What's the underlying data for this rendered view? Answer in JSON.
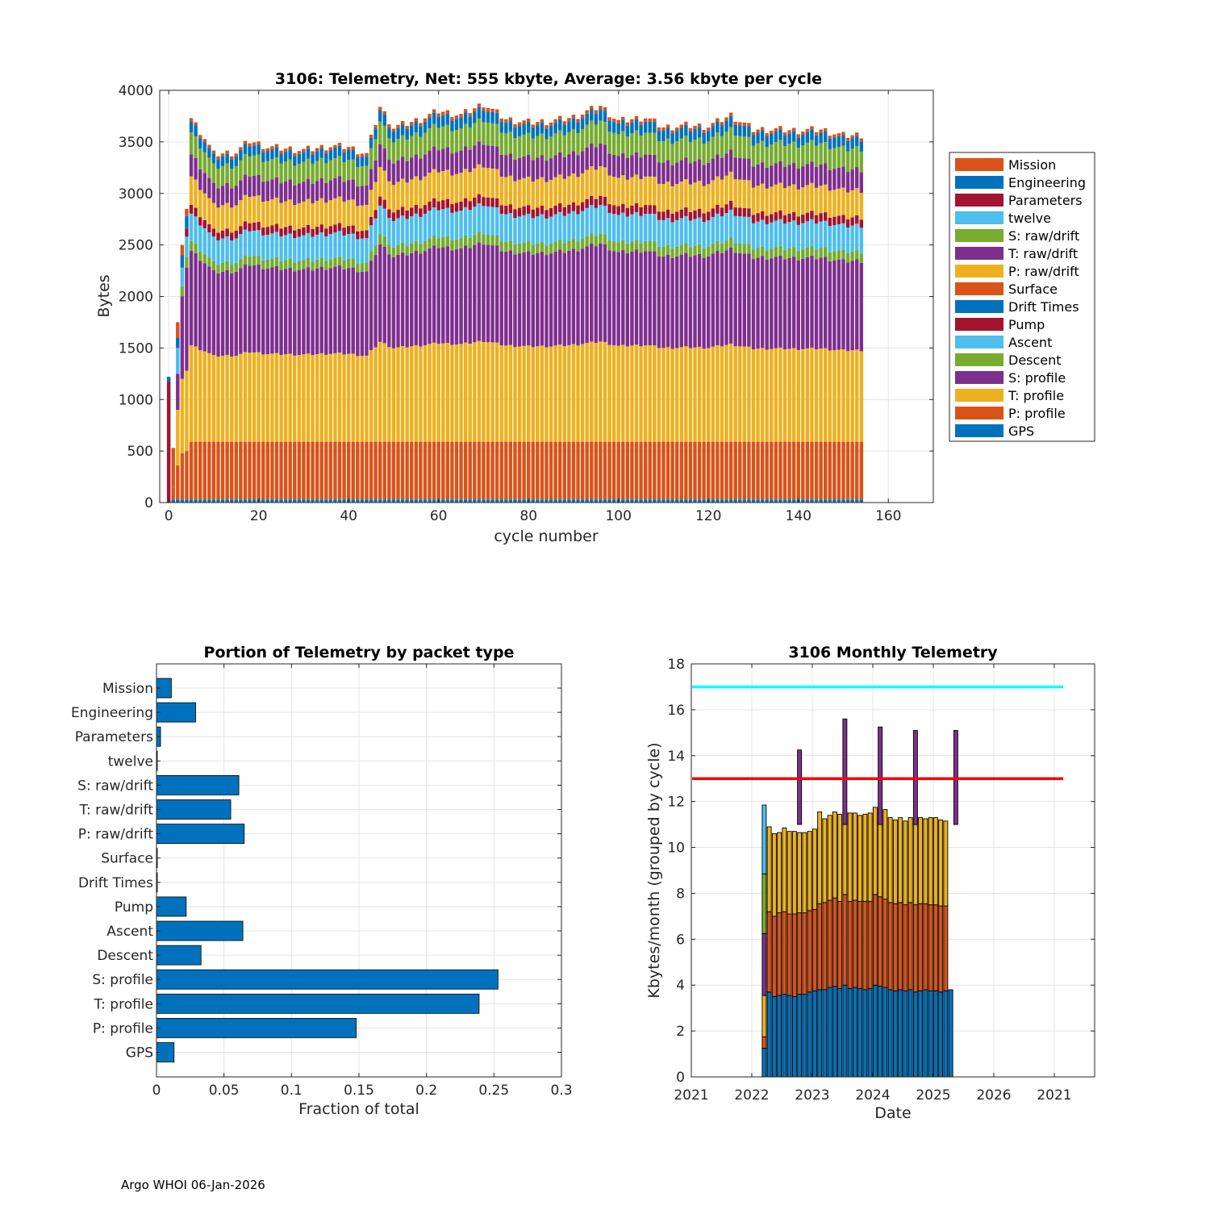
{
  "footer": "Argo WHOI 06-Jan-2026",
  "colors": {
    "blue": "#0072BD",
    "orange": "#D95319",
    "yellow": "#EDB120",
    "purple": "#7E2F8E",
    "green": "#77AC30",
    "cyan": "#4DBEEE",
    "red": "#A2142F",
    "limit_high": "#00FFFF",
    "limit_low": "#FF0000",
    "grid": "#e4e4e4"
  },
  "chart_data": [
    {
      "type": "bar",
      "stacked": true,
      "title": "3106: Telemetry, Net:    555 kbyte,  Average: 3.56 kbyte per cycle",
      "xlabel": "cycle number",
      "ylabel": "Bytes",
      "xlim": [
        -2,
        170
      ],
      "ylim": [
        0,
        4000
      ],
      "xticks": [
        0,
        20,
        40,
        60,
        80,
        100,
        120,
        140,
        160
      ],
      "yticks": [
        0,
        500,
        1000,
        1500,
        2000,
        2500,
        3000,
        3500,
        4000
      ],
      "legend": [
        "Mission",
        "Engineering",
        "Parameters",
        "twelve",
        "S: raw/drift",
        "T: raw/drift",
        "P: raw/drift",
        "Surface",
        "Drift Times",
        "Pump",
        "Ascent",
        "Descent",
        "S: profile",
        "T: profile",
        "P: profile",
        "GPS"
      ],
      "legend_location": "right",
      "stack_order": [
        "GPS",
        "P: profile",
        "T: profile",
        "S: profile",
        "Descent",
        "Ascent",
        "Pump",
        "P: raw/drift",
        "T: raw/drift",
        "S: raw/drift",
        "Engineering",
        "Mission"
      ],
      "segment_colors": [
        "#0072BD",
        "#D95319",
        "#EDB120",
        "#7E2F8E",
        "#77AC30",
        "#4DBEEE",
        "#A2142F",
        "#EDB120",
        "#7E2F8E",
        "#77AC30",
        "#0072BD",
        "#D95319"
      ],
      "cycle_first": 5,
      "cycle_last": 154,
      "segment_base_values": {
        "GPS": 30,
        "P: profile": 560,
        "T: profile": 880,
        "S: profile": 860,
        "Descent": 90,
        "Ascent": 250,
        "Pump": 80,
        "P: raw/drift": 260,
        "T: raw/drift": 200,
        "S: raw/drift": 200,
        "Engineering": 100,
        "Mission": 30
      },
      "early_cycles": [
        {
          "cycle": 0,
          "segments": [
            {
              "name": "Parameters",
              "value": 1170,
              "color": "#A2142F"
            },
            {
              "name": "Engineering",
              "value": 50,
              "color": "#0072BD"
            }
          ]
        },
        {
          "cycle": 1,
          "segments": [
            {
              "name": "GPS",
              "value": 30,
              "color": "#0072BD"
            },
            {
              "name": "P: profile",
              "value": 120,
              "color": "#D95319"
            },
            {
              "name": "Mission",
              "value": 380,
              "color": "#D95319"
            }
          ]
        },
        {
          "cycle": 2,
          "segments": [
            {
              "name": "GPS",
              "value": 30,
              "color": "#0072BD"
            },
            {
              "name": "P: profile",
              "value": 330,
              "color": "#D95319"
            },
            {
              "name": "T: profile",
              "value": 540,
              "color": "#EDB120"
            },
            {
              "name": "S: profile",
              "value": 350,
              "color": "#7E2F8E"
            },
            {
              "name": "Ascent",
              "value": 250,
              "color": "#4DBEEE"
            },
            {
              "name": "Engineering",
              "value": 100,
              "color": "#0072BD"
            },
            {
              "name": "Mission",
              "value": 150,
              "color": "#D95319"
            }
          ]
        },
        {
          "cycle": 3,
          "segments": [
            {
              "name": "GPS",
              "value": 30,
              "color": "#0072BD"
            },
            {
              "name": "P: profile",
              "value": 450,
              "color": "#D95319"
            },
            {
              "name": "T: profile",
              "value": 720,
              "color": "#EDB120"
            },
            {
              "name": "S: profile",
              "value": 800,
              "color": "#7E2F8E"
            },
            {
              "name": "Descent",
              "value": 100,
              "color": "#77AC30"
            },
            {
              "name": "Ascent",
              "value": 180,
              "color": "#4DBEEE"
            },
            {
              "name": "Engineering",
              "value": 120,
              "color": "#0072BD"
            },
            {
              "name": "Mission",
              "value": 100,
              "color": "#D95319"
            }
          ]
        },
        {
          "cycle": 4,
          "segments": [
            {
              "name": "GPS",
              "value": 30,
              "color": "#0072BD"
            },
            {
              "name": "P: profile",
              "value": 470,
              "color": "#D95319"
            },
            {
              "name": "T: profile",
              "value": 780,
              "color": "#EDB120"
            },
            {
              "name": "S: profile",
              "value": 1000,
              "color": "#7E2F8E"
            },
            {
              "name": "Descent",
              "value": 100,
              "color": "#77AC30"
            },
            {
              "name": "Ascent",
              "value": 200,
              "color": "#4DBEEE"
            },
            {
              "name": "Pump",
              "value": 80,
              "color": "#A2142F"
            },
            {
              "name": "Engineering",
              "value": 120,
              "color": "#0072BD"
            },
            {
              "name": "Mission",
              "value": 70,
              "color": "#D95319"
            }
          ]
        }
      ],
      "sampled_totals": [
        {
          "cycle": 5,
          "total": 3730
        },
        {
          "cycle": 8,
          "total": 3540
        },
        {
          "cycle": 10,
          "total": 3380
        },
        {
          "cycle": 15,
          "total": 3400
        },
        {
          "cycle": 18,
          "total": 3510
        },
        {
          "cycle": 22,
          "total": 3450
        },
        {
          "cycle": 30,
          "total": 3420
        },
        {
          "cycle": 36,
          "total": 3460
        },
        {
          "cycle": 40,
          "total": 3450
        },
        {
          "cycle": 44,
          "total": 3380
        },
        {
          "cycle": 47,
          "total": 3840
        },
        {
          "cycle": 50,
          "total": 3640
        },
        {
          "cycle": 56,
          "total": 3720
        },
        {
          "cycle": 60,
          "total": 3800
        },
        {
          "cycle": 65,
          "total": 3760
        },
        {
          "cycle": 70,
          "total": 3870
        },
        {
          "cycle": 75,
          "total": 3720
        },
        {
          "cycle": 80,
          "total": 3690
        },
        {
          "cycle": 85,
          "total": 3700
        },
        {
          "cycle": 90,
          "total": 3740
        },
        {
          "cycle": 96,
          "total": 3850
        },
        {
          "cycle": 100,
          "total": 3700
        },
        {
          "cycle": 106,
          "total": 3740
        },
        {
          "cycle": 110,
          "total": 3640
        },
        {
          "cycle": 115,
          "total": 3660
        },
        {
          "cycle": 120,
          "total": 3650
        },
        {
          "cycle": 125,
          "total": 3760
        },
        {
          "cycle": 130,
          "total": 3620
        },
        {
          "cycle": 135,
          "total": 3620
        },
        {
          "cycle": 140,
          "total": 3610
        },
        {
          "cycle": 145,
          "total": 3620
        },
        {
          "cycle": 150,
          "total": 3560
        },
        {
          "cycle": 154,
          "total": 3570
        }
      ]
    },
    {
      "type": "bar",
      "orientation": "horizontal",
      "title": "Portion of Telemetry by packet type",
      "xlabel": "Fraction of total",
      "ylabel": "",
      "xlim": [
        0,
        0.3
      ],
      "xticks": [
        0,
        0.05,
        0.1,
        0.15,
        0.2,
        0.25,
        0.3
      ],
      "xtick_labels": [
        "0",
        "0.05",
        "0.1",
        "0.15",
        "0.2",
        "0.25",
        "0.3"
      ],
      "categories": [
        "Mission",
        "Engineering",
        "Parameters",
        "twelve",
        "S: raw/drift",
        "T: raw/drift",
        "P: raw/drift",
        "Surface",
        "Drift Times",
        "Pump",
        "Ascent",
        "Descent",
        "S: profile",
        "T: profile",
        "P: profile",
        "GPS"
      ],
      "values": [
        0.011,
        0.029,
        0.003,
        0.0005,
        0.061,
        0.055,
        0.065,
        0.0005,
        0.0005,
        0.022,
        0.064,
        0.033,
        0.253,
        0.239,
        0.148,
        0.013
      ]
    },
    {
      "type": "bar",
      "stacked": true,
      "title": "3106 Monthly Telemetry",
      "xlabel": "Date",
      "ylabel": "Kbytes/month (grouped by cycle)",
      "xtick_labels": [
        "2021",
        "2022",
        "2023",
        "2024",
        "2025",
        "2026",
        "2021"
      ],
      "ylim": [
        0,
        18
      ],
      "yticks": [
        0,
        2,
        4,
        6,
        8,
        10,
        12,
        14,
        16,
        18
      ],
      "reference_lines": [
        {
          "value": 17,
          "color": "#00FFFF"
        },
        {
          "value": 13,
          "color": "#FF0000"
        }
      ],
      "months_zero_before": 13,
      "months_zero_after": 12,
      "monthly_blue": [
        3.9,
        3.7,
        3.5,
        3.55,
        3.6,
        3.55,
        3.5,
        3.6,
        3.6,
        3.7,
        3.75,
        3.8,
        3.8,
        3.9,
        3.95,
        3.85,
        4.0,
        3.85,
        3.9,
        3.85,
        3.8,
        3.85,
        4.0,
        3.95,
        3.9,
        3.8,
        3.75,
        3.8,
        3.75,
        3.8,
        3.7,
        3.75,
        3.8,
        3.75,
        3.75,
        3.7,
        3.75,
        3.8
      ],
      "monthly_orange": [
        3.3,
        3.5,
        3.5,
        3.6,
        3.6,
        3.55,
        3.6,
        3.55,
        3.55,
        3.55,
        3.55,
        3.75,
        3.8,
        3.8,
        3.85,
        3.8,
        3.95,
        3.8,
        3.8,
        3.8,
        3.85,
        3.8,
        3.95,
        3.9,
        3.85,
        3.8,
        3.8,
        3.8,
        3.75,
        3.8,
        3.8,
        3.8,
        3.75,
        3.75,
        3.75,
        3.75,
        3.7,
        0.0
      ],
      "monthly_yellow": [
        3.9,
        3.7,
        3.6,
        3.5,
        3.65,
        3.6,
        3.6,
        3.5,
        3.5,
        3.45,
        3.5,
        4.0,
        3.65,
        3.7,
        3.75,
        3.8,
        3.6,
        3.85,
        3.8,
        3.75,
        3.8,
        3.85,
        3.8,
        3.85,
        3.9,
        3.7,
        3.65,
        3.7,
        3.65,
        3.7,
        3.8,
        3.75,
        3.7,
        3.8,
        3.8,
        3.75,
        3.7,
        0.0
      ],
      "first_month_extra": {
        "orange_base": 0.5,
        "yellow_lower": 1.8,
        "purple_lower": 2.7,
        "green_lower": 2.6,
        "cyan_lower": 3.0
      },
      "spikes": [
        {
          "month_index": 7,
          "top": 14.25
        },
        {
          "month_index": 16,
          "top": 15.6
        },
        {
          "month_index": 23,
          "top": 15.25
        },
        {
          "month_index": 30,
          "top": 15.1
        },
        {
          "month_index": 38,
          "top": 15.1
        }
      ]
    }
  ]
}
